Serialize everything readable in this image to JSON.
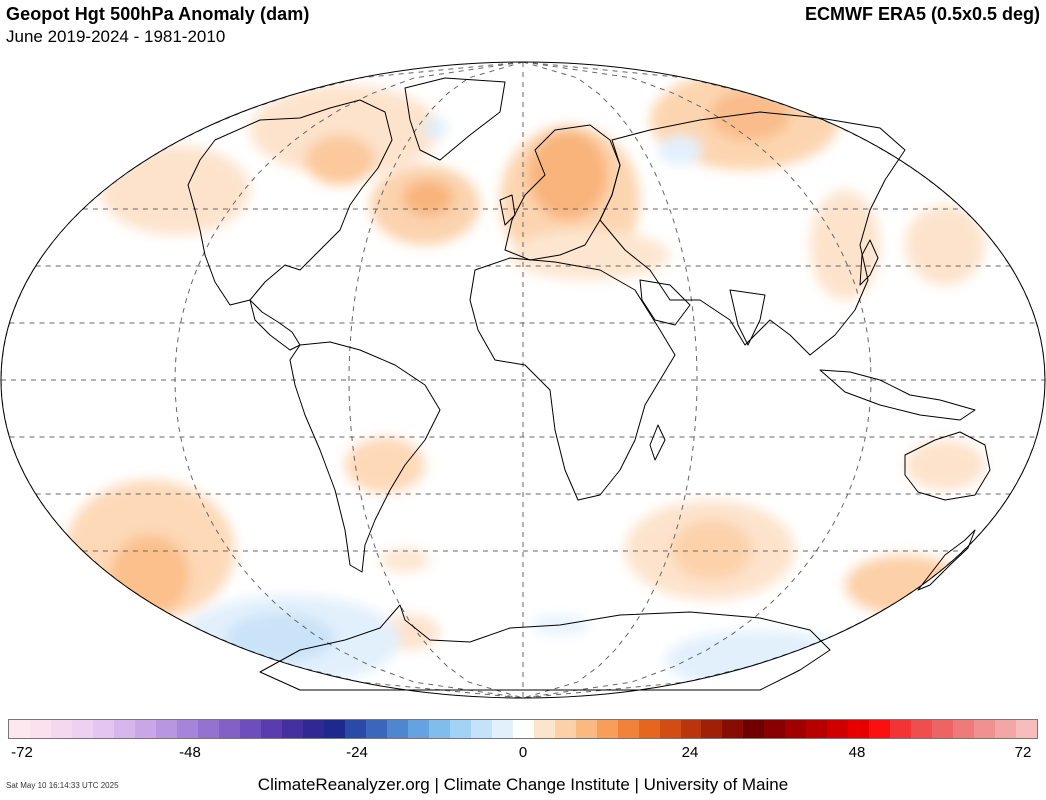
{
  "header": {
    "title": "Geopot Hgt 500hPa Anomaly (dam)",
    "subtitle": "June 2019-2024 - 1981-2010",
    "source": "ECMWF ERA5 (0.5x0.5 deg)"
  },
  "colorbar": {
    "colors": [
      "#fde8f0",
      "#fbe0ee",
      "#f5d8f0",
      "#eed0f2",
      "#e4c4f0",
      "#d6b6ec",
      "#c8a6e8",
      "#b896e2",
      "#a684da",
      "#9472d0",
      "#8260c6",
      "#6e4ebc",
      "#5a3cae",
      "#4430a0",
      "#302894",
      "#1c2a8e",
      "#2a4aa8",
      "#3a66bc",
      "#4e86d0",
      "#64a2e0",
      "#80bcec",
      "#a2d2f4",
      "#c4e2f8",
      "#e2f0fc",
      "#ffffff",
      "#fde4cc",
      "#fcd0a8",
      "#fbb880",
      "#f89e58",
      "#f2823a",
      "#e66620",
      "#d24c14",
      "#ba340c",
      "#a02006",
      "#860c04",
      "#700000",
      "#880000",
      "#a00000",
      "#b80000",
      "#d00000",
      "#e80000",
      "#fa1010",
      "#f43434",
      "#f04e4e",
      "#ee6464",
      "#ee7a7a",
      "#f09090",
      "#f4a6a6",
      "#f8bcbc"
    ],
    "tick_labels": [
      "-72",
      "-48",
      "-24",
      "0",
      "24",
      "48",
      "72"
    ]
  },
  "footer": {
    "timestamp": "Sat May 10 16:14:33 UTC 2025",
    "credit": "ClimateReanalyzer.org | Climate Change Institute | University of Maine"
  }
}
